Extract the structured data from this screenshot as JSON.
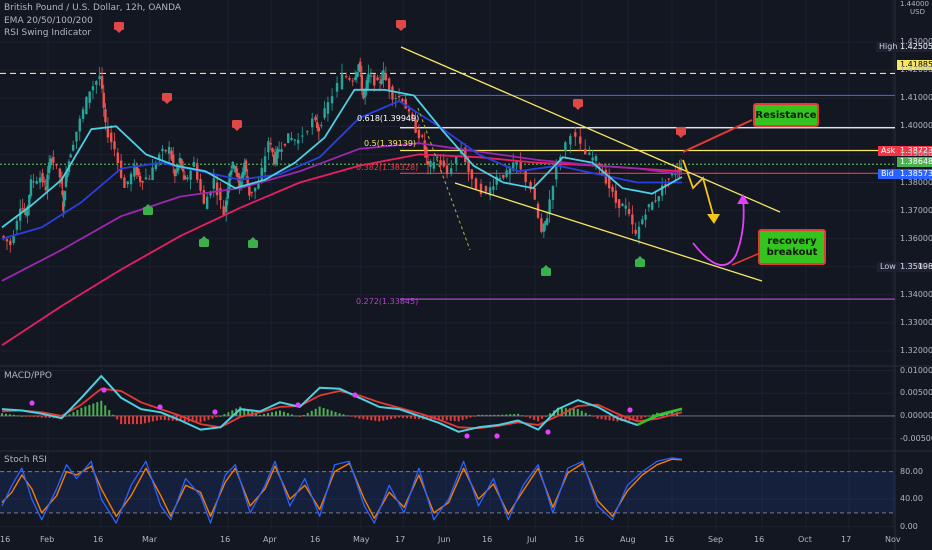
{
  "header": {
    "symbol": "British Pound / U.S. Dollar, 12h, OANDA",
    "indicator1": "EMA 20/50/100/200",
    "indicator2": "RSI Swing Indicator"
  },
  "annotations": {
    "resistance": "Resistance",
    "recovery": "recovery breakout"
  },
  "price_labels": {
    "high_name": "High",
    "high_value": "1.42505",
    "level_value": "1.41885",
    "ask_name": "Ask",
    "ask_value": "1.38723",
    "mid_value": "1.38648",
    "bid_name": "Bid",
    "bid_value": "1.38573",
    "low_name": "Low",
    "low_value": "1.35198",
    "top_value": "1.44000",
    "currency": "USD"
  },
  "fib_levels": [
    {
      "label": "0.618(1.39949)",
      "value": 1.39949,
      "color": "#ffffff"
    },
    {
      "label": "0.5(1.39139)",
      "value": 1.39139,
      "color": "#f5e663"
    },
    {
      "label": "0.382(1.38328)",
      "value": 1.38328,
      "color": "#f23645"
    },
    {
      "label": "0.272(1.33845)",
      "value": 1.33845,
      "color": "#b044c8"
    }
  ],
  "colors": {
    "background": "#131722",
    "up": "#26a69a",
    "down": "#ef5350",
    "ema20": "#4dd0e1",
    "ema50": "#2940e0",
    "ema100": "#9c27b0",
    "ema200": "#e91e63",
    "channel": "#f5e663",
    "annotation": "#35c41f",
    "signal": "#e04848"
  },
  "chart_data": [
    {
      "type": "line",
      "title": "British Pound / U.S. Dollar, 12h, OANDA",
      "x_ticks": [
        "Feb",
        "16",
        "Mar",
        "16",
        "Apr",
        "16",
        "May",
        "17",
        "Jun",
        "16",
        "Jul",
        "16",
        "Aug",
        "16",
        "Sep",
        "16",
        "Oct",
        "17",
        "Nov",
        "16"
      ],
      "y_ticks": [
        1.43,
        1.42,
        1.41,
        1.4,
        1.39,
        1.38,
        1.37,
        1.36,
        1.35,
        1.34,
        1.33,
        1.32
      ],
      "ylim": [
        1.315,
        1.445
      ],
      "series": [
        {
          "name": "price",
          "x": [
            0,
            10,
            20,
            25,
            30,
            40,
            45,
            50,
            60,
            62,
            65,
            70,
            80,
            90,
            100,
            105,
            115,
            125,
            135,
            140,
            150,
            160,
            170,
            175,
            180,
            185,
            195,
            205,
            215,
            225,
            230,
            235,
            240,
            245,
            250,
            260,
            270,
            275,
            280,
            290,
            300,
            315,
            320,
            330,
            345,
            355,
            360,
            365,
            370,
            380,
            385,
            395,
            405,
            415,
            425,
            430,
            440,
            450,
            465,
            475,
            490,
            500,
            510,
            520,
            535,
            545,
            550,
            560,
            575,
            590,
            600,
            610,
            620,
            630,
            640,
            650,
            660,
            670,
            680,
            685
          ],
          "y": [
            1.361,
            1.358,
            1.372,
            1.368,
            1.38,
            1.382,
            1.378,
            1.39,
            1.382,
            1.371,
            1.382,
            1.391,
            1.402,
            1.413,
            1.418,
            1.4,
            1.392,
            1.378,
            1.385,
            1.381,
            1.382,
            1.39,
            1.392,
            1.382,
            1.388,
            1.38,
            1.387,
            1.372,
            1.381,
            1.369,
            1.384,
            1.387,
            1.378,
            1.387,
            1.376,
            1.379,
            1.395,
            1.388,
            1.392,
            1.396,
            1.395,
            1.402,
            1.399,
            1.408,
            1.418,
            1.417,
            1.422,
            1.41,
            1.418,
            1.415,
            1.419,
            1.411,
            1.41,
            1.401,
            1.395,
            1.385,
            1.389,
            1.383,
            1.392,
            1.38,
            1.376,
            1.382,
            1.383,
            1.387,
            1.378,
            1.362,
            1.368,
            1.386,
            1.398,
            1.39,
            1.388,
            1.381,
            1.373,
            1.371,
            1.361,
            1.37,
            1.374,
            1.38,
            1.384,
            1.386
          ]
        },
        {
          "name": "EMA 20",
          "x": [
            0,
            30,
            60,
            90,
            115,
            145,
            175,
            205,
            235,
            265,
            295,
            325,
            355,
            385,
            415,
            445,
            475,
            505,
            535,
            565,
            595,
            625,
            655,
            685
          ],
          "y": [
            1.364,
            1.372,
            1.381,
            1.399,
            1.4,
            1.39,
            1.386,
            1.384,
            1.378,
            1.381,
            1.387,
            1.396,
            1.413,
            1.413,
            1.411,
            1.398,
            1.386,
            1.38,
            1.378,
            1.389,
            1.387,
            1.378,
            1.376,
            1.382
          ]
        },
        {
          "name": "EMA 50",
          "x": [
            0,
            40,
            80,
            120,
            160,
            200,
            240,
            280,
            320,
            360,
            400,
            440,
            480,
            520,
            560,
            600,
            640,
            685
          ],
          "y": [
            1.36,
            1.364,
            1.373,
            1.385,
            1.387,
            1.384,
            1.381,
            1.383,
            1.389,
            1.403,
            1.409,
            1.4,
            1.39,
            1.384,
            1.386,
            1.383,
            1.38,
            1.38
          ]
        },
        {
          "name": "EMA 100",
          "x": [
            0,
            60,
            120,
            180,
            240,
            300,
            360,
            420,
            480,
            540,
            600,
            640,
            685
          ],
          "y": [
            1.345,
            1.356,
            1.368,
            1.375,
            1.378,
            1.384,
            1.392,
            1.394,
            1.391,
            1.388,
            1.386,
            1.385,
            1.383
          ]
        },
        {
          "name": "EMA 200",
          "x": [
            0,
            60,
            120,
            180,
            240,
            300,
            360,
            420,
            480,
            540,
            600,
            640,
            685
          ],
          "y": [
            1.322,
            1.336,
            1.349,
            1.361,
            1.371,
            1.38,
            1.386,
            1.39,
            1.389,
            1.387,
            1.386,
            1.385,
            1.384
          ]
        }
      ]
    },
    {
      "type": "line",
      "title": "MACD/PPO",
      "y_ticks": [
        0.01,
        0.005,
        0.0,
        -0.005
      ],
      "ylim": [
        -0.0075,
        0.011
      ],
      "series": [
        {
          "name": "macd",
          "x": [
            0,
            20,
            40,
            60,
            80,
            100,
            120,
            140,
            160,
            180,
            200,
            220,
            240,
            260,
            280,
            300,
            320,
            340,
            360,
            380,
            400,
            420,
            440,
            460,
            480,
            500,
            520,
            540,
            560,
            580,
            600,
            620,
            640,
            660,
            685
          ],
          "y": [
            0.0015,
            0.0012,
            0.0005,
            -0.0005,
            0.004,
            0.0088,
            0.004,
            0.0015,
            0.0008,
            -0.001,
            -0.003,
            -0.0025,
            0.0015,
            0.001,
            0.003,
            0.002,
            0.0062,
            0.006,
            0.004,
            0.002,
            0.0015,
            0.0,
            -0.0015,
            -0.0035,
            -0.0025,
            -0.002,
            -0.001,
            -0.003,
            0.0015,
            0.0035,
            0.002,
            -0.0005,
            -0.002,
            0.0,
            0.0015
          ]
        },
        {
          "name": "signal",
          "x": [
            0,
            20,
            40,
            60,
            80,
            100,
            120,
            140,
            160,
            180,
            200,
            220,
            240,
            260,
            280,
            300,
            320,
            340,
            360,
            380,
            400,
            420,
            440,
            460,
            480,
            500,
            520,
            540,
            560,
            580,
            600,
            620,
            640,
            660,
            685
          ],
          "y": [
            0.001,
            0.0012,
            0.0008,
            0.0,
            0.0025,
            0.006,
            0.0055,
            0.003,
            0.0015,
            0.0,
            -0.0018,
            -0.0025,
            -0.0002,
            0.0008,
            0.002,
            0.0022,
            0.0045,
            0.0055,
            0.0045,
            0.003,
            0.0018,
            0.0006,
            -0.0008,
            -0.0025,
            -0.0027,
            -0.0022,
            -0.0014,
            -0.002,
            0.0,
            0.0022,
            0.0025,
            0.0005,
            -0.0012,
            -0.0006,
            0.0008
          ]
        }
      ]
    },
    {
      "type": "line",
      "title": "Stoch RSI",
      "y_ticks": [
        80.0,
        40.0,
        0.0
      ],
      "ylim": [
        -5,
        110
      ],
      "bands": [
        80,
        20
      ],
      "series": [
        {
          "name": "k",
          "x": [
            0,
            10,
            20,
            30,
            40,
            55,
            65,
            75,
            90,
            100,
            115,
            130,
            145,
            160,
            170,
            185,
            200,
            210,
            225,
            235,
            250,
            265,
            275,
            290,
            305,
            320,
            335,
            350,
            365,
            375,
            390,
            405,
            420,
            435,
            450,
            465,
            480,
            495,
            510,
            525,
            540,
            555,
            570,
            585,
            600,
            615,
            630,
            645,
            660,
            675,
            685
          ],
          "y": [
            30,
            60,
            85,
            40,
            10,
            55,
            90,
            70,
            95,
            40,
            5,
            60,
            95,
            30,
            10,
            70,
            45,
            5,
            75,
            90,
            20,
            60,
            95,
            30,
            70,
            15,
            90,
            95,
            30,
            5,
            60,
            20,
            85,
            10,
            40,
            95,
            30,
            70,
            10,
            60,
            90,
            20,
            85,
            95,
            30,
            10,
            60,
            80,
            95,
            100,
            98
          ]
        },
        {
          "name": "d",
          "x": [
            0,
            10,
            20,
            30,
            40,
            55,
            65,
            75,
            90,
            100,
            115,
            130,
            145,
            160,
            170,
            185,
            200,
            210,
            225,
            235,
            250,
            265,
            275,
            290,
            305,
            320,
            335,
            350,
            365,
            375,
            390,
            405,
            420,
            435,
            450,
            465,
            480,
            495,
            510,
            525,
            540,
            555,
            570,
            585,
            600,
            615,
            630,
            645,
            660,
            675,
            685
          ],
          "y": [
            35,
            50,
            75,
            55,
            20,
            45,
            80,
            75,
            88,
            55,
            15,
            45,
            85,
            45,
            15,
            60,
            50,
            15,
            65,
            85,
            30,
            55,
            88,
            40,
            60,
            25,
            80,
            92,
            40,
            12,
            50,
            28,
            75,
            20,
            35,
            85,
            40,
            62,
            18,
            52,
            85,
            28,
            78,
            92,
            38,
            15,
            52,
            75,
            90,
            98,
            97
          ]
        }
      ]
    }
  ]
}
